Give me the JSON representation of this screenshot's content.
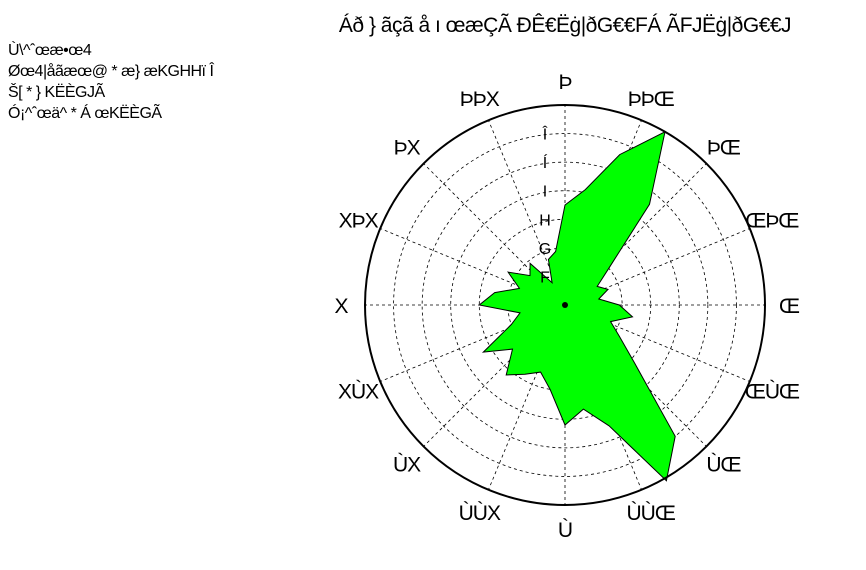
{
  "info": {
    "title": "Áð } ãçã å ı œæÇÃ ÐÊ€Ëġ|ðG€€FÁ ÃFJËġ|ðG€€J",
    "lines": [
      "Ù\\^ˆœæ•œ4",
      "Øœ4|åãæœ@ * æ} æKGHHï Î",
      "Š[ * } KËÈGJÃ",
      "Ó¡^ˆœä^ * Á œKËÈGÃ"
    ]
  },
  "chart_data": {
    "type": "radar",
    "fill_color": "#00ff00",
    "grid": true,
    "radial_labels": [
      "F",
      "G",
      "H",
      "I",
      "Í",
      "Î"
    ],
    "direction_labels": [
      "Þ",
      "ÞÞŒ",
      "ÞŒ",
      "ŒÞŒ",
      "Œ",
      "ŒÙŒ",
      "ÙŒ",
      "ÙÙŒ",
      "Ù",
      "ÙÙX",
      "ÙX",
      "XÙX",
      "X",
      "XÞX",
      "ÞX",
      "ÞÞX"
    ],
    "ring_count": 7,
    "max_ring": 7,
    "angles_deg": [
      0,
      10,
      20,
      30,
      40,
      50,
      60,
      70,
      80,
      90,
      100,
      110,
      120,
      130,
      140,
      150,
      160,
      170,
      180,
      190,
      200,
      210,
      220,
      230,
      240,
      250,
      260,
      270,
      280,
      290,
      300,
      310,
      320,
      330,
      340,
      350
    ],
    "values": [
      3.5,
      4.1,
      5.6,
      7.0,
      4.6,
      2.0,
      1.3,
      1.6,
      1.2,
      1.9,
      2.4,
      1.7,
      2.2,
      3.2,
      6.0,
      7.1,
      4.5,
      3.7,
      4.2,
      3.0,
      2.5,
      2.8,
      3.2,
      2.4,
      3.3,
      2.0,
      1.6,
      3.0,
      2.5,
      1.7,
      2.3,
      1.6,
      1.9,
      0.9,
      1.7,
      1.9
    ]
  }
}
